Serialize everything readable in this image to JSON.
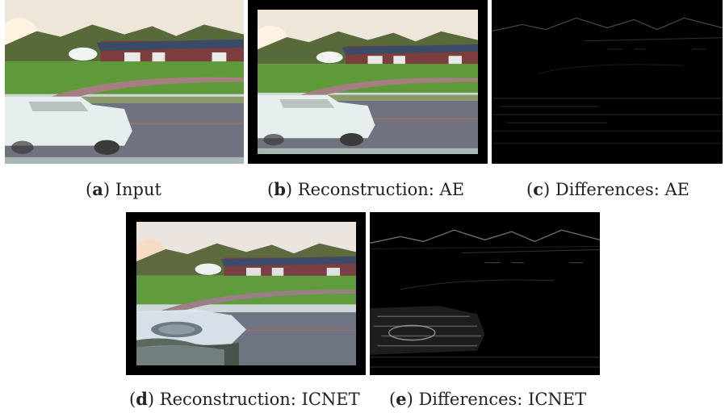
{
  "panels": [
    {
      "id": "a",
      "letter": "a",
      "caption": "Input"
    },
    {
      "id": "b",
      "letter": "b",
      "caption": "Reconstruction: AE"
    },
    {
      "id": "c",
      "letter": "c",
      "caption": "Differences: AE"
    },
    {
      "id": "d",
      "letter": "d",
      "caption": "Reconstruction: ICNET"
    },
    {
      "id": "e",
      "letter": "e",
      "caption": "Differences: ICNET"
    }
  ],
  "colors": {
    "frame": "#000000",
    "sky": "#f3e8dc",
    "trees": "#556b35",
    "house_roof": "#3b4a66",
    "house_wall": "#7a3a3a",
    "lawn": "#5f9a3a",
    "driveway": "#a07a7a",
    "road": "#6f7280",
    "car": "#e8f0ee",
    "diff_bg": "#000000",
    "diff_edge": "#5a5a5a"
  }
}
